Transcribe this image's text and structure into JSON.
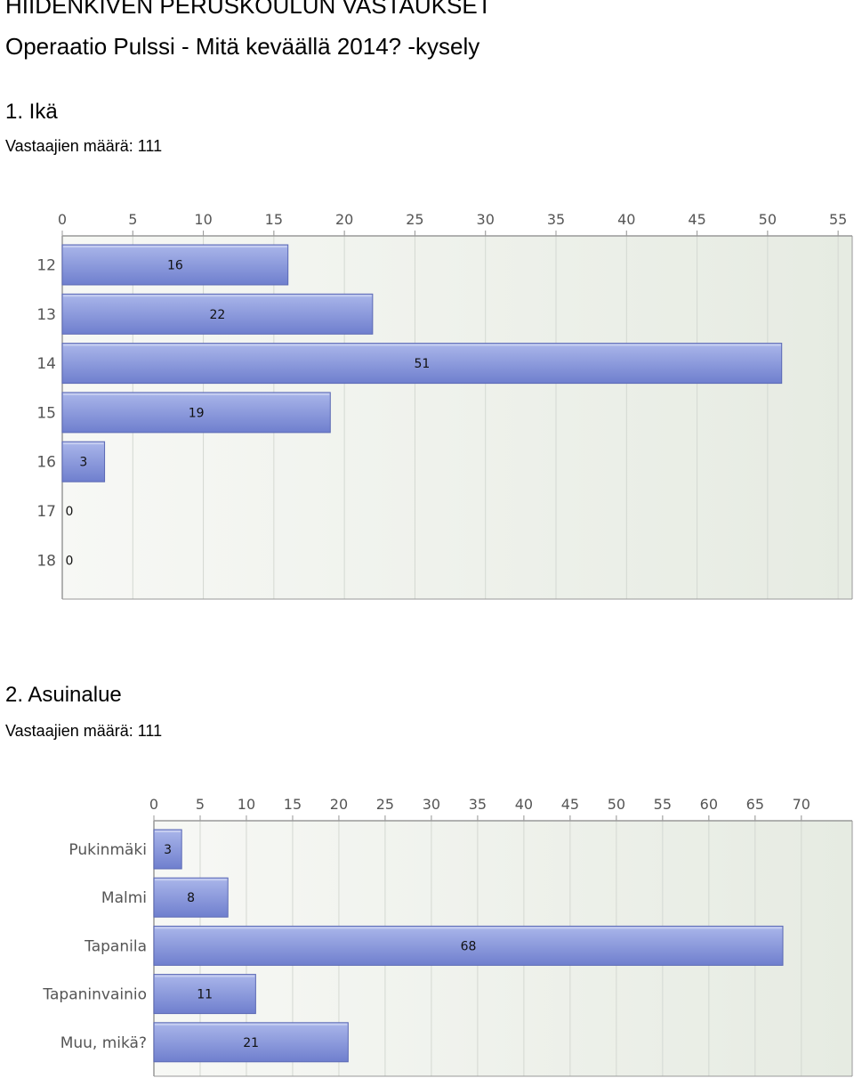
{
  "page": {
    "title": "HIIDENKIVEN PERUSKOULUN VASTAUKSET",
    "subtitle": "Operaatio Pulssi - Mitä keväällä 2014? -kysely"
  },
  "questions": [
    {
      "heading": "1. Ikä",
      "respondents": "Vastaajien määrä: 111"
    },
    {
      "heading": "2. Asuinalue",
      "respondents": "Vastaajien määrä: 111"
    }
  ],
  "chart_data": [
    {
      "type": "bar",
      "orientation": "horizontal",
      "title": "1. Ikä",
      "categories": [
        "12",
        "13",
        "14",
        "15",
        "16",
        "17",
        "18"
      ],
      "values": [
        16,
        22,
        51,
        19,
        3,
        0,
        0
      ],
      "xlim": [
        0,
        56
      ],
      "xticks": [
        0,
        5,
        10,
        15,
        20,
        25,
        30,
        35,
        40,
        45,
        50,
        55
      ],
      "grid": true,
      "colors": {
        "bar_top": "#aab6ea",
        "bar_bottom": "#6f7fce",
        "bar_edge": "#5a68b4",
        "plot_bg_left": "#f7f8f5",
        "plot_bg_right": "#e6ebe2",
        "grid": "#d4d8d2",
        "axis": "#999999",
        "text": "#555555"
      }
    },
    {
      "type": "bar",
      "orientation": "horizontal",
      "title": "2. Asuinalue",
      "categories": [
        "Pukinmäki",
        "Malmi",
        "Tapanila",
        "Tapaninvainio",
        "Muu, mikä?"
      ],
      "values": [
        3,
        8,
        68,
        11,
        21
      ],
      "xlim": [
        0,
        75.5
      ],
      "xticks": [
        0,
        5,
        10,
        15,
        20,
        25,
        30,
        35,
        40,
        45,
        50,
        55,
        60,
        65,
        70
      ],
      "grid": true,
      "colors": {
        "bar_top": "#aab6ea",
        "bar_bottom": "#6f7fce",
        "bar_edge": "#5a68b4",
        "plot_bg_left": "#f7f8f5",
        "plot_bg_right": "#e6ebe2",
        "grid": "#d4d8d2",
        "axis": "#999999",
        "text": "#555555"
      }
    }
  ]
}
